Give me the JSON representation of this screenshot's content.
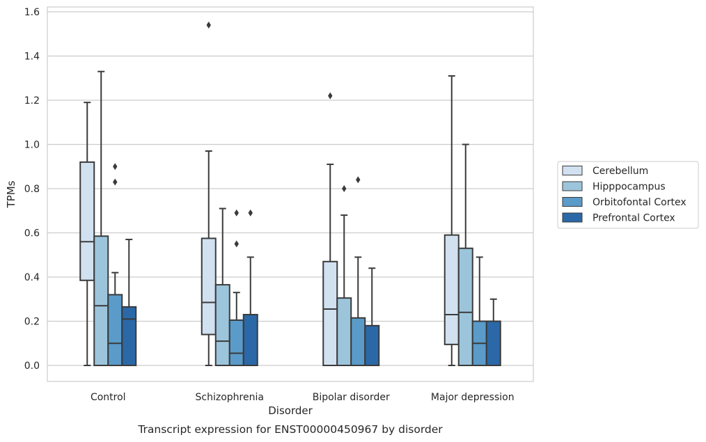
{
  "chart_data": {
    "type": "box",
    "xlabel": "Disorder",
    "ylabel": "TPMs",
    "caption": "Transcript expression for ENST00000450967 by disorder",
    "ylim": [
      -0.075,
      1.62
    ],
    "yticks": [
      "0.0",
      "0.2",
      "0.4",
      "0.6",
      "0.8",
      "1.0",
      "1.2",
      "1.4",
      "1.6"
    ],
    "grid": "horizontal",
    "legend_position": "right",
    "categories": [
      "Control",
      "Schizophrenia",
      "Bipolar disorder",
      "Major depression"
    ],
    "series": [
      {
        "name": "Cerebellum",
        "color": "#d1e1f0",
        "boxes": [
          {
            "whislo": 0.0,
            "q1": 0.385,
            "med": 0.56,
            "q3": 0.92,
            "whishi": 1.19,
            "fliers": []
          },
          {
            "whislo": 0.0,
            "q1": 0.14,
            "med": 0.285,
            "q3": 0.575,
            "whishi": 0.97,
            "fliers": [
              1.54
            ]
          },
          {
            "whislo": 0.0,
            "q1": 0.0,
            "med": 0.255,
            "q3": 0.47,
            "whishi": 0.91,
            "fliers": [
              1.22
            ]
          },
          {
            "whislo": 0.0,
            "q1": 0.095,
            "med": 0.23,
            "q3": 0.59,
            "whishi": 1.31,
            "fliers": []
          }
        ]
      },
      {
        "name": "Hipppocampus",
        "color": "#9cc5dc",
        "boxes": [
          {
            "whislo": 0.0,
            "q1": 0.0,
            "med": 0.27,
            "q3": 0.585,
            "whishi": 1.33,
            "fliers": []
          },
          {
            "whislo": 0.0,
            "q1": 0.0,
            "med": 0.11,
            "q3": 0.365,
            "whishi": 0.71,
            "fliers": []
          },
          {
            "whislo": 0.0,
            "q1": 0.0,
            "med": 0.0,
            "q3": 0.305,
            "whishi": 0.68,
            "fliers": [
              0.8
            ]
          },
          {
            "whislo": 0.0,
            "q1": 0.0,
            "med": 0.24,
            "q3": 0.53,
            "whishi": 1.0,
            "fliers": []
          }
        ]
      },
      {
        "name": "Orbitofontal Cortex",
        "color": "#5a9bc9",
        "boxes": [
          {
            "whislo": 0.0,
            "q1": 0.0,
            "med": 0.1,
            "q3": 0.32,
            "whishi": 0.42,
            "fliers": [
              0.83,
              0.9
            ]
          },
          {
            "whislo": 0.0,
            "q1": 0.0,
            "med": 0.055,
            "q3": 0.205,
            "whishi": 0.33,
            "fliers": [
              0.55,
              0.69
            ]
          },
          {
            "whislo": 0.0,
            "q1": 0.0,
            "med": 0.0,
            "q3": 0.215,
            "whishi": 0.49,
            "fliers": [
              0.84
            ]
          },
          {
            "whislo": 0.0,
            "q1": 0.0,
            "med": 0.1,
            "q3": 0.2,
            "whishi": 0.49,
            "fliers": []
          }
        ]
      },
      {
        "name": "Prefrontal Cortex",
        "color": "#2b68a7",
        "boxes": [
          {
            "whislo": 0.0,
            "q1": 0.0,
            "med": 0.21,
            "q3": 0.265,
            "whishi": 0.57,
            "fliers": []
          },
          {
            "whislo": 0.0,
            "q1": 0.0,
            "med": 0.0,
            "q3": 0.23,
            "whishi": 0.49,
            "fliers": [
              0.69
            ]
          },
          {
            "whislo": 0.0,
            "q1": 0.0,
            "med": 0.0,
            "q3": 0.18,
            "whishi": 0.44,
            "fliers": []
          },
          {
            "whislo": 0.0,
            "q1": 0.0,
            "med": 0.0,
            "q3": 0.2,
            "whishi": 0.3,
            "fliers": []
          }
        ]
      }
    ]
  }
}
